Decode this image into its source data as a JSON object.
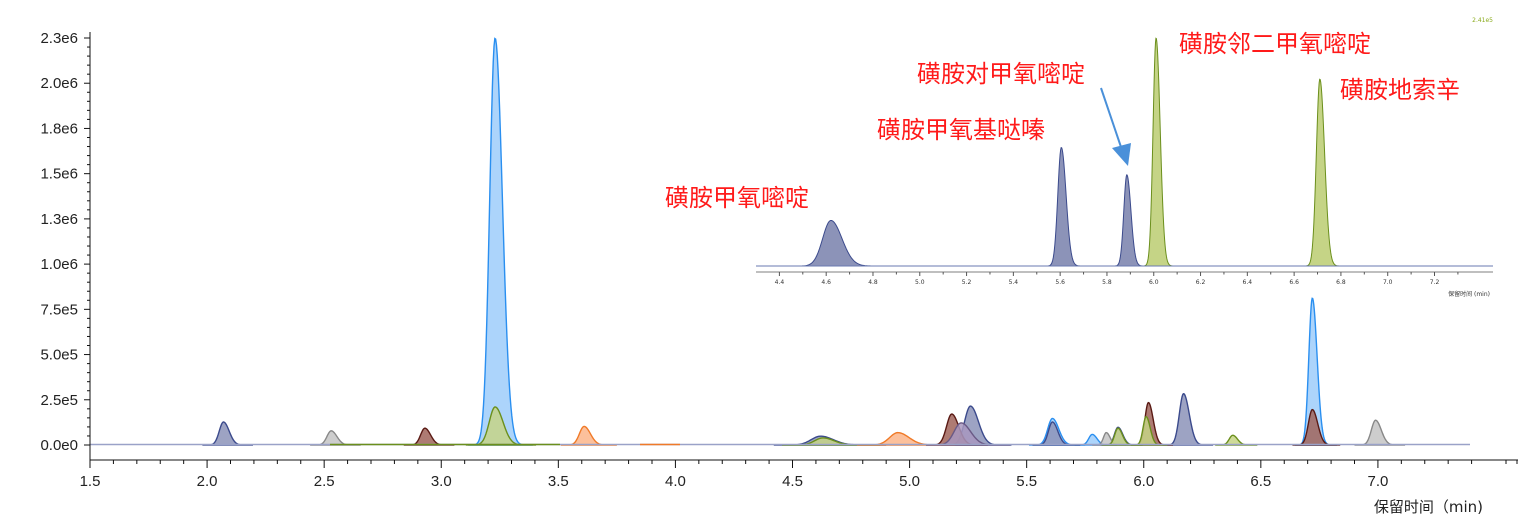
{
  "chart_data": [
    {
      "type": "area",
      "title": "",
      "xlabel": "保留时间（min)",
      "ylabel": "",
      "xlim": [
        1.5,
        7.5
      ],
      "ylim": [
        0,
        2300000
      ],
      "x_ticks": [
        "1.5",
        "2.0",
        "2.5",
        "3.0",
        "3.5",
        "4.0",
        "4.5",
        "5.0",
        "5.5",
        "6.0",
        "6.5",
        "7.0"
      ],
      "y_ticks": [
        "0.0e0",
        "2.5e5",
        "5.0e5",
        "7.5e5",
        "1.0e6",
        "1.3e6",
        "1.5e6",
        "1.8e6",
        "2.0e6",
        "2.3e6"
      ],
      "grid": false,
      "series": [
        {
          "color": "#2a8ff0",
          "fill": "#9dcdfa",
          "peaks": [
            {
              "rt": 3.23,
              "height": 2300000,
              "width": 0.023
            },
            {
              "rt": 5.61,
              "height": 150000,
              "width": 0.02
            },
            {
              "rt": 5.78,
              "height": 60000,
              "width": 0.015
            },
            {
              "rt": 6.72,
              "height": 830000,
              "width": 0.015
            }
          ]
        },
        {
          "color": "#3b4a8c",
          "fill": "#8c93b8",
          "peaks": [
            {
              "rt": 2.07,
              "height": 130000,
              "width": 0.018
            },
            {
              "rt": 4.62,
              "height": 50000,
              "width": 0.04
            },
            {
              "rt": 5.26,
              "height": 220000,
              "width": 0.025
            },
            {
              "rt": 5.61,
              "height": 130000,
              "width": 0.017
            },
            {
              "rt": 5.89,
              "height": 100000,
              "width": 0.015
            },
            {
              "rt": 6.17,
              "height": 290000,
              "width": 0.018
            }
          ]
        },
        {
          "color": "#888888",
          "fill": "#c4c4c4",
          "peaks": [
            {
              "rt": 2.53,
              "height": 80000,
              "width": 0.018
            },
            {
              "rt": 5.84,
              "height": 70000,
              "width": 0.012
            },
            {
              "rt": 6.99,
              "height": 140000,
              "width": 0.018
            }
          ]
        },
        {
          "color": "#5a1a14",
          "fill": "#a0645a",
          "peaks": [
            {
              "rt": 2.93,
              "height": 95000,
              "width": 0.018
            },
            {
              "rt": 5.18,
              "height": 175000,
              "width": 0.022
            },
            {
              "rt": 6.02,
              "height": 240000,
              "width": 0.015
            },
            {
              "rt": 6.72,
              "height": 200000,
              "width": 0.017
            }
          ]
        },
        {
          "color": "#6b8f1c",
          "fill": "#c5d486",
          "peaks": [
            {
              "rt": 3.23,
              "height": 215000,
              "width": 0.025
            },
            {
              "rt": 4.63,
              "height": 40000,
              "width": 0.035
            },
            {
              "rt": 5.89,
              "height": 95000,
              "width": 0.014
            },
            {
              "rt": 6.01,
              "height": 160000,
              "width": 0.013
            },
            {
              "rt": 6.38,
              "height": 55000,
              "width": 0.015
            }
          ]
        },
        {
          "color": "#f07a28",
          "fill": "#fbb58a",
          "peaks": [
            {
              "rt": 3.61,
              "height": 105000,
              "width": 0.02
            },
            {
              "rt": 4.95,
              "height": 70000,
              "width": 0.035
            }
          ]
        },
        {
          "color": "#6a5a86",
          "fill": "#a898c0",
          "peaks": [
            {
              "rt": 5.22,
              "height": 125000,
              "width": 0.03
            }
          ]
        }
      ]
    },
    {
      "type": "area",
      "title": "",
      "xlabel": "保留时间 (min)",
      "scale_label": "2.41e5",
      "xlim": [
        4.3,
        7.45
      ],
      "x_ticks": [
        "4.4",
        "4.6",
        "4.8",
        "5.0",
        "5.2",
        "5.4",
        "5.6",
        "5.8",
        "6.0",
        "6.2",
        "6.4",
        "6.6",
        "6.8",
        "7.0",
        "7.2"
      ],
      "series": [
        {
          "color": "#3b4a8c",
          "fill": "#8c93b8",
          "peaks": [
            {
              "rt": 4.62,
              "rel": 0.2,
              "width": 0.035
            },
            {
              "rt": 5.605,
              "rel": 0.52,
              "width": 0.015
            },
            {
              "rt": 5.885,
              "rel": 0.4,
              "width": 0.013
            }
          ]
        },
        {
          "color": "#6b8f1c",
          "fill": "#c5d486",
          "peaks": [
            {
              "rt": 6.01,
              "rel": 1.0,
              "width": 0.013
            },
            {
              "rt": 6.71,
              "rel": 0.82,
              "width": 0.015
            }
          ]
        }
      ]
    }
  ],
  "annotations": [
    {
      "text": "磺胺甲氧嘧啶"
    },
    {
      "text": "磺胺甲氧基哒嗪"
    },
    {
      "text": "磺胺对甲氧嘧啶"
    },
    {
      "text": "磺胺邻二甲氧嘧啶"
    },
    {
      "text": "磺胺地索辛"
    }
  ]
}
